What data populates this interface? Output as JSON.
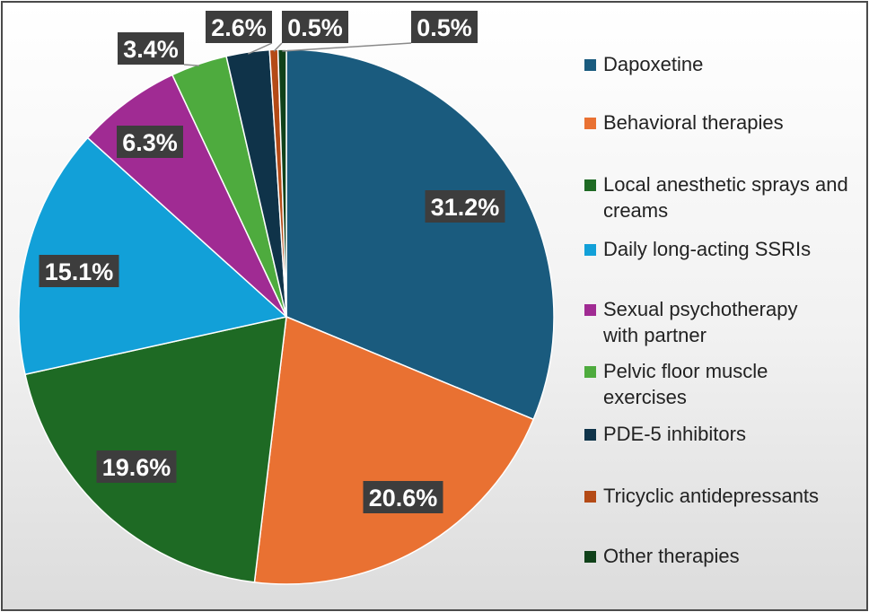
{
  "chart_data": {
    "type": "pie",
    "title": "",
    "start_angle_deg": 0,
    "direction": "clockwise",
    "legend_position": "right",
    "slices": [
      {
        "name": "Dapoxetine",
        "value": 31.2,
        "label": "31.2%",
        "color": "#1a5b7e"
      },
      {
        "name": "Behavioral therapies",
        "value": 20.6,
        "label": "20.6%",
        "color": "#e97132"
      },
      {
        "name": "Local anesthetic sprays and creams",
        "value": 19.6,
        "label": "19.6%",
        "color": "#1e6a24"
      },
      {
        "name": "Daily long-acting SSRIs",
        "value": 15.1,
        "label": "15.1%",
        "color": "#12a0d8"
      },
      {
        "name": "Sexual psychotherapy with partner",
        "value": 6.3,
        "label": "6.3%",
        "color": "#a02b93"
      },
      {
        "name": "Pelvic floor muscle exercises",
        "value": 3.4,
        "label": "3.4%",
        "color": "#4eab3e"
      },
      {
        "name": "PDE-5 inhibitors",
        "value": 2.6,
        "label": "2.6%",
        "color": "#0f3349"
      },
      {
        "name": "Tricyclic antidepressants",
        "value": 0.5,
        "label": "0.5%",
        "color": "#b44a16"
      },
      {
        "name": "Other therapies",
        "value": 0.5,
        "label": "0.5%",
        "color": "#10411a"
      }
    ]
  },
  "legend": {
    "items": [
      {
        "label": "Dapoxetine",
        "color": "#1a5b7e"
      },
      {
        "label": "Behavioral therapies",
        "color": "#e97132"
      },
      {
        "label": "Local anesthetic sprays and creams",
        "color": "#1e6a24"
      },
      {
        "label": "Daily long-acting SSRIs",
        "color": "#12a0d8"
      },
      {
        "label": "Sexual psychotherapy with partner",
        "color": "#a02b93"
      },
      {
        "label": "Pelvic floor muscle exercises",
        "color": "#4eab3e"
      },
      {
        "label": "PDE-5 inhibitors",
        "color": "#0f3349"
      },
      {
        "label": "Tricyclic antidepressants",
        "color": "#b44a16"
      },
      {
        "label": "Other therapies",
        "color": "#10411a"
      }
    ]
  }
}
